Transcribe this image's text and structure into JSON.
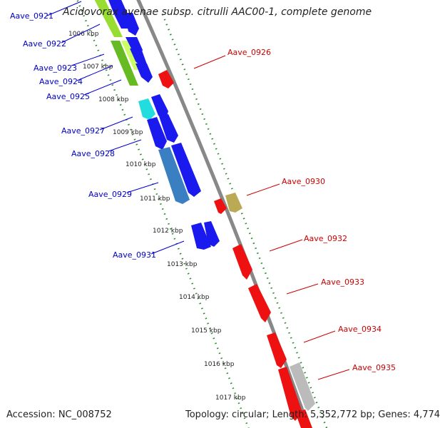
{
  "title": "Acidovorax avenae subsp. citrulli AAC00-1, complete genome",
  "footer": {
    "accession": "Accession: NC_008752",
    "summary": "Topology: circular; Length: 5,352,772 bp; Genes: 4,774"
  },
  "colors": {
    "backbone": "#888888",
    "forward_strand": "#0000ee",
    "reverse_strand": "#ee0000",
    "tick_dots": "#228b22",
    "left_label": "#0000cc",
    "right_label": "#cc0000"
  },
  "ticks": [
    {
      "label": "1006 kbp"
    },
    {
      "label": "1007 kbp"
    },
    {
      "label": "1008 kbp"
    },
    {
      "label": "1009 kbp"
    },
    {
      "label": "1010 kbp"
    },
    {
      "label": "1011 kbp"
    },
    {
      "label": "1012 kbp"
    },
    {
      "label": "1013 kbp"
    },
    {
      "label": "1014 kbp"
    },
    {
      "label": "1015 kbp"
    },
    {
      "label": "1016 kbp"
    },
    {
      "label": "1017 kbp"
    }
  ],
  "gene_labels_left": [
    "Aave_0921",
    "Aave_0922",
    "Aave_0923",
    "Aave_0924",
    "Aave_0925",
    "Aave_0927",
    "Aave_0928",
    "Aave_0929",
    "Aave_0931"
  ],
  "gene_labels_right": [
    "Aave_0926",
    "Aave_0930",
    "Aave_0932",
    "Aave_0933",
    "Aave_0934",
    "Aave_0935"
  ]
}
